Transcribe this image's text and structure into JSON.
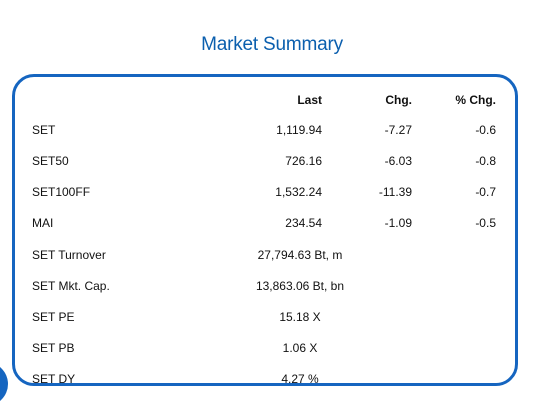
{
  "title": "Market Summary",
  "table": {
    "headers": {
      "last": "Last",
      "chg": "Chg.",
      "pct_chg": "% Chg."
    },
    "index_rows": [
      {
        "name": "SET",
        "last": "1,119.94",
        "chg": "-7.27",
        "pct_chg": "-0.6"
      },
      {
        "name": "SET50",
        "last": "726.16",
        "chg": "-6.03",
        "pct_chg": "-0.8"
      },
      {
        "name": "SET100FF",
        "last": "1,532.24",
        "chg": "-11.39",
        "pct_chg": "-0.7"
      },
      {
        "name": "MAI",
        "last": "234.54",
        "chg": "-1.09",
        "pct_chg": "-0.5"
      }
    ],
    "stat_rows": [
      {
        "name": "SET Turnover",
        "value": "27,794.63 Bt, m"
      },
      {
        "name": "SET Mkt. Cap.",
        "value": "13,863.06 Bt, bn"
      },
      {
        "name": "SET PE",
        "value": "15.18 X"
      },
      {
        "name": "SET PB",
        "value": "1.06 X"
      },
      {
        "name": "SET DY",
        "value": "4.27 %"
      }
    ]
  },
  "colors": {
    "title": "#0b5fae",
    "border": "#1565c0",
    "text": "#111111"
  }
}
